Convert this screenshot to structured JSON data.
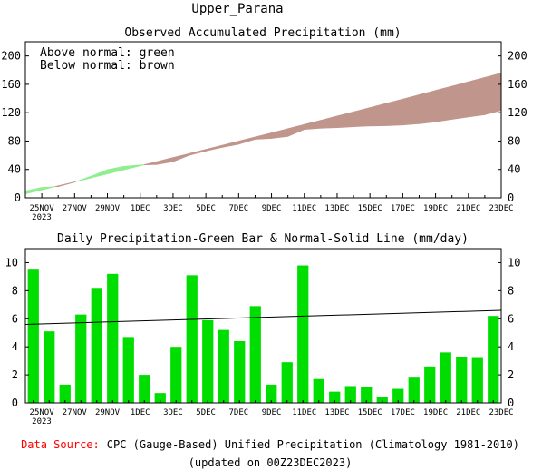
{
  "page": {
    "title": "Upper_Parana",
    "footer_source_label": "Data Source:",
    "footer_source_text": "CPC (Gauge-Based) Unified Precipitation (Climatology 1981-2010)",
    "footer_updated": "(updated on 00Z23DEC2023)",
    "source_label_color": "#ff0000"
  },
  "chart_data": [
    {
      "type": "area",
      "title": "Observed Accumulated Precipitation (mm)",
      "legend_lines": [
        "Above normal: green",
        "Below normal: brown"
      ],
      "legend_position": "top-left",
      "above_color": "#90ee90",
      "below_color": "#c0968c",
      "x_tick_labels": [
        "25NOV",
        "27NOV",
        "29NOV",
        "1DEC",
        "3DEC",
        "5DEC",
        "7DEC",
        "9DEC",
        "11DEC",
        "13DEC",
        "15DEC",
        "17DEC",
        "19DEC",
        "21DEC",
        "23DEC"
      ],
      "x_tick_sublabel": "2023",
      "ylim": [
        0,
        220
      ],
      "y_ticks": [
        0,
        40,
        80,
        120,
        160,
        200
      ],
      "dates": [
        "24NOV",
        "25NOV",
        "26NOV",
        "27NOV",
        "28NOV",
        "29NOV",
        "30NOV",
        "1DEC",
        "2DEC",
        "3DEC",
        "4DEC",
        "5DEC",
        "6DEC",
        "7DEC",
        "8DEC",
        "9DEC",
        "10DEC",
        "11DEC",
        "12DEC",
        "13DEC",
        "14DEC",
        "15DEC",
        "16DEC",
        "17DEC",
        "18DEC",
        "19DEC",
        "20DEC",
        "21DEC",
        "22DEC",
        "23DEC"
      ],
      "observed": [
        9.5,
        14.6,
        15.9,
        22.2,
        30.4,
        39.6,
        44.3,
        46.3,
        47.0,
        51.0,
        60.1,
        66.0,
        71.2,
        75.6,
        82.5,
        83.8,
        86.7,
        96.5,
        98.2,
        99.0,
        100.2,
        101.3,
        101.7,
        102.7,
        104.5,
        107.1,
        110.7,
        114.0,
        117.2,
        123.4
      ],
      "normal": [
        5.6,
        11.2,
        16.8,
        22.4,
        28.1,
        33.8,
        39.5,
        45.2,
        50.9,
        56.7,
        62.4,
        68.2,
        74.0,
        79.8,
        85.7,
        91.5,
        97.4,
        103.3,
        109.2,
        115.2,
        121.1,
        127.1,
        133.1,
        139.1,
        145.2,
        151.3,
        157.3,
        163.5,
        169.6,
        175.8
      ]
    },
    {
      "type": "bar",
      "title": "Daily Precipitation-Green Bar & Normal-Solid Line (mm/day)",
      "bar_color": "#00dd00",
      "line_color": "#000000",
      "x_tick_labels": [
        "25NOV",
        "27NOV",
        "29NOV",
        "1DEC",
        "3DEC",
        "5DEC",
        "7DEC",
        "9DEC",
        "11DEC",
        "13DEC",
        "15DEC",
        "17DEC",
        "19DEC",
        "21DEC",
        "23DEC"
      ],
      "x_tick_sublabel": "2023",
      "ylim": [
        0,
        11
      ],
      "y_ticks": [
        0,
        2,
        4,
        6,
        8,
        10
      ],
      "dates": [
        "24NOV",
        "25NOV",
        "26NOV",
        "27NOV",
        "28NOV",
        "29NOV",
        "30NOV",
        "1DEC",
        "2DEC",
        "3DEC",
        "4DEC",
        "5DEC",
        "6DEC",
        "7DEC",
        "8DEC",
        "9DEC",
        "10DEC",
        "11DEC",
        "12DEC",
        "13DEC",
        "14DEC",
        "15DEC",
        "16DEC",
        "17DEC",
        "18DEC",
        "19DEC",
        "20DEC",
        "21DEC",
        "22DEC",
        "23DEC"
      ],
      "values": [
        9.5,
        5.1,
        1.3,
        6.3,
        8.2,
        9.2,
        4.7,
        2.0,
        0.7,
        4.0,
        9.1,
        5.9,
        5.2,
        4.4,
        6.9,
        1.3,
        2.9,
        9.8,
        1.7,
        0.8,
        1.2,
        1.1,
        0.4,
        1.0,
        1.8,
        2.6,
        3.6,
        3.3,
        3.2,
        6.2
      ],
      "normal_line": [
        5.6,
        6.6
      ]
    }
  ]
}
